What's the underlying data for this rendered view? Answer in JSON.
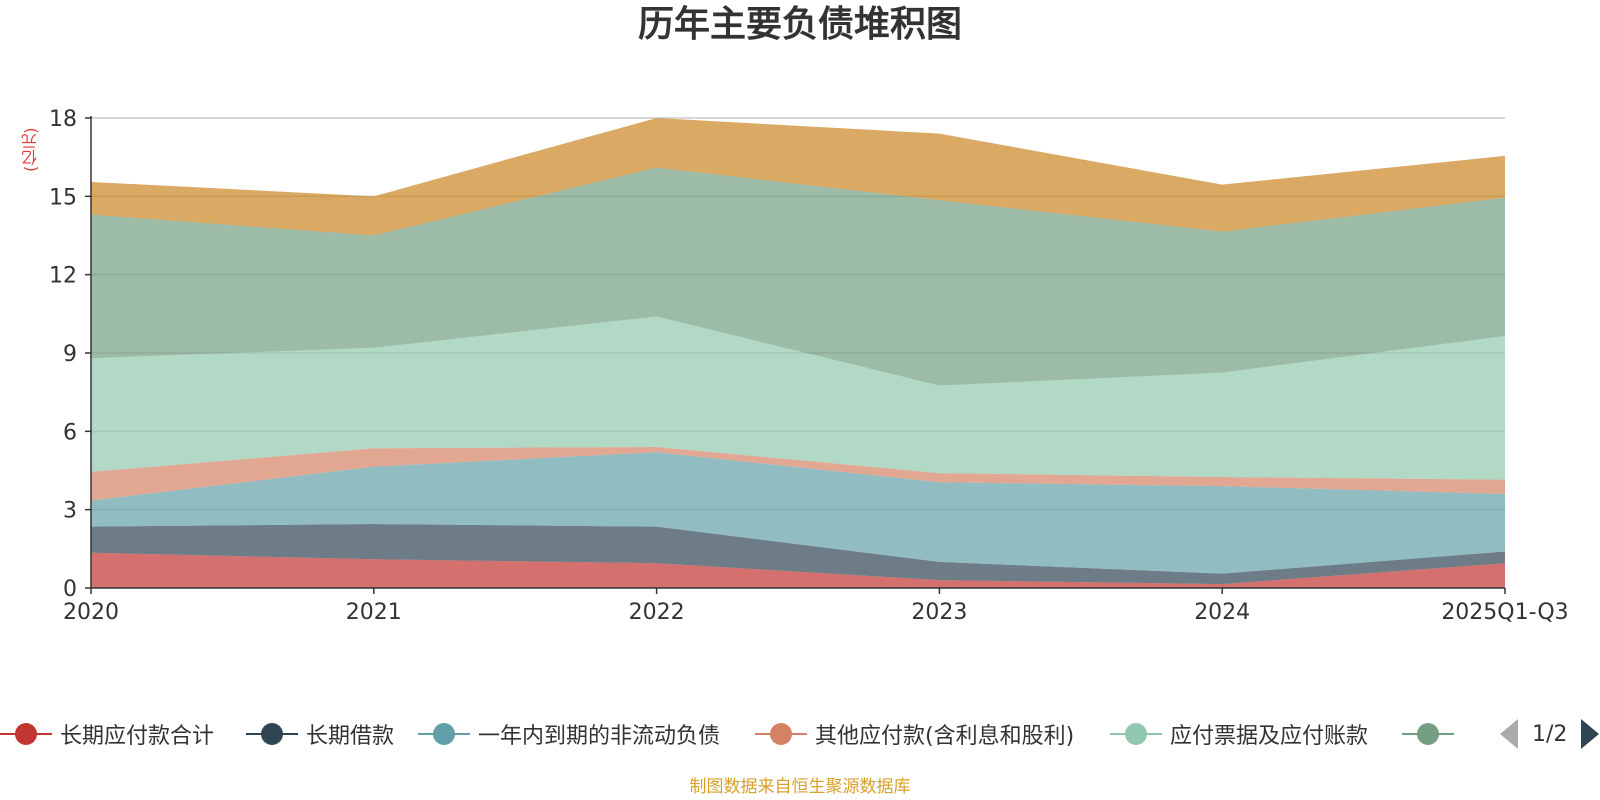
{
  "chart_data": {
    "type": "area",
    "title": "历年主要负债堆积图",
    "unit_label": "(亿元)",
    "categories": [
      "2020",
      "2021",
      "2022",
      "2023",
      "2024",
      "2025Q1-Q3"
    ],
    "y_ticks": [
      "0",
      "3",
      "6",
      "9",
      "12",
      "15",
      "18"
    ],
    "ylim": [
      0,
      18
    ],
    "grid": true,
    "stacked": true,
    "legend_position": "bottom",
    "series": [
      {
        "name": "长期应付款合计",
        "color": "#c23531",
        "values": [
          1.35,
          1.1,
          0.95,
          0.3,
          0.15,
          0.95
        ]
      },
      {
        "name": "长期借款",
        "color": "#2f4554",
        "values": [
          1.0,
          1.35,
          1.4,
          0.7,
          0.4,
          0.45
        ]
      },
      {
        "name": "一年内到期的非流动负债",
        "color": "#61a0a8",
        "values": [
          1.0,
          2.2,
          2.85,
          3.05,
          3.35,
          2.2
        ]
      },
      {
        "name": "其他应付款(含利息和股利)",
        "color": "#d48265",
        "values": [
          1.1,
          0.7,
          0.2,
          0.35,
          0.35,
          0.55
        ]
      },
      {
        "name": "应付票据及应付账款",
        "color": "#91c7ae",
        "values": [
          4.35,
          3.85,
          5.0,
          3.35,
          4.0,
          5.5
        ]
      },
      {
        "name": "",
        "color": "#749f83",
        "values": [
          5.5,
          4.3,
          5.7,
          7.1,
          5.4,
          5.3
        ]
      },
      {
        "name": "",
        "color": "#ca8622",
        "values": [
          1.25,
          1.5,
          1.9,
          2.55,
          1.8,
          1.6
        ]
      }
    ]
  },
  "legend": {
    "visible_items": [
      {
        "label": "长期应付款合计",
        "color": "#c23531"
      },
      {
        "label": "长期借款",
        "color": "#2f4554"
      },
      {
        "label": "一年内到期的非流动负债",
        "color": "#61a0a8"
      },
      {
        "label": "其他应付款(含利息和股利)",
        "color": "#d48265"
      },
      {
        "label": "应付票据及应付账款",
        "color": "#91c7ae"
      },
      {
        "label": "",
        "color": "#749f83"
      }
    ],
    "page_indicator": "1/2"
  },
  "footer": {
    "source": "制图数据来自恒生聚源数据库"
  }
}
